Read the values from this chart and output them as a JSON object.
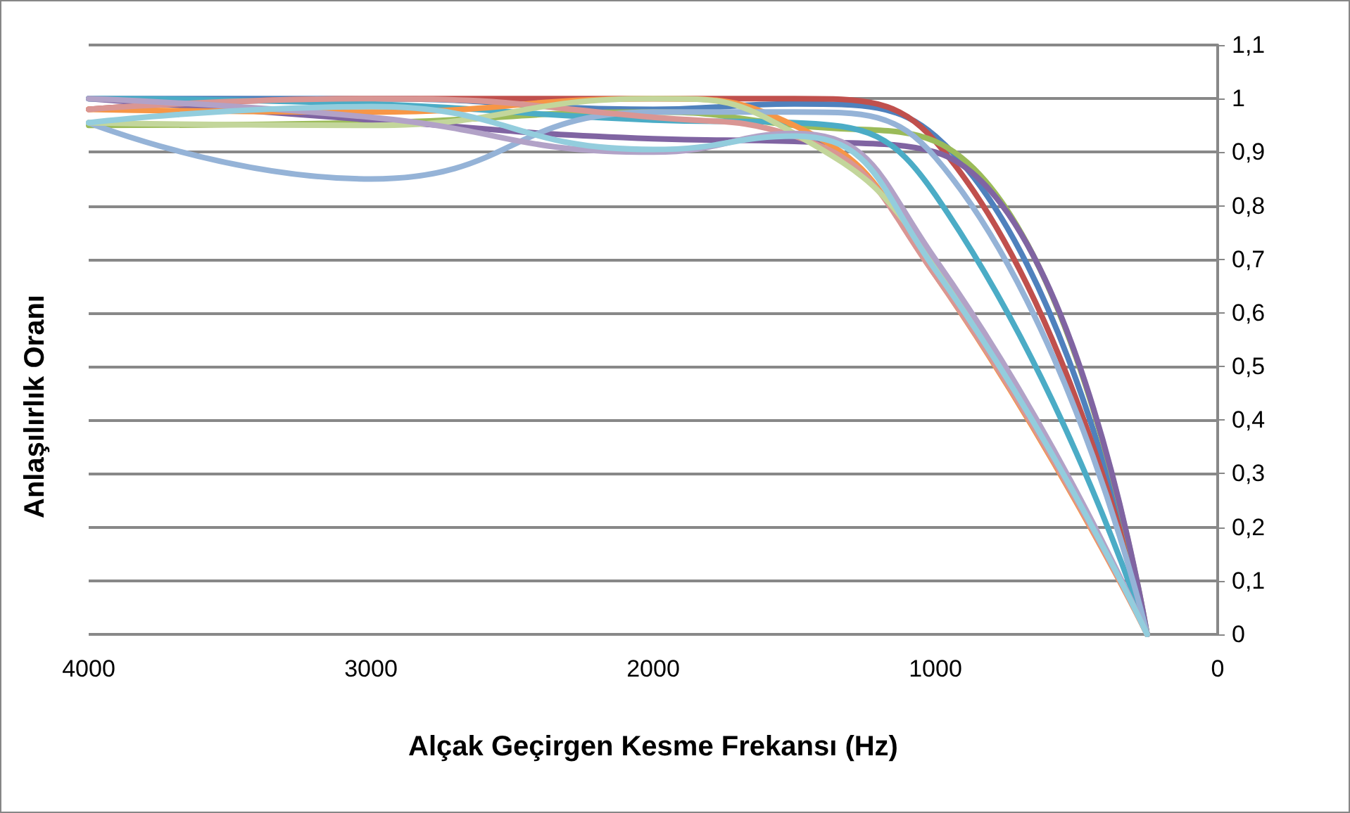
{
  "chart_data": {
    "type": "line",
    "xlabel": "Alçak Geçirgen Kesme Frekansı (Hz)",
    "ylabel": "Anlaşılırlık Oranı",
    "x": [
      4000,
      3000,
      2000,
      1500,
      1000,
      250
    ],
    "series": [
      {
        "color": "#4f81bd",
        "values": [
          1.0,
          1.0,
          0.98,
          0.99,
          0.93,
          0
        ]
      },
      {
        "color": "#c0504d",
        "values": [
          0.98,
          1.0,
          1.0,
          1.0,
          0.92,
          0
        ]
      },
      {
        "color": "#9bbb59",
        "values": [
          0.95,
          0.955,
          0.975,
          0.95,
          0.92,
          0
        ]
      },
      {
        "color": "#8064a2",
        "values": [
          1.0,
          0.96,
          0.925,
          0.92,
          0.9,
          0
        ]
      },
      {
        "color": "#4bacc6",
        "values": [
          1.0,
          0.99,
          0.96,
          0.955,
          0.82,
          0
        ]
      },
      {
        "color": "#f79646",
        "values": [
          0.98,
          0.975,
          1.0,
          0.95,
          0.67,
          0
        ]
      },
      {
        "color": "#95b3d7",
        "values": [
          0.955,
          0.85,
          0.975,
          0.975,
          0.89,
          0
        ]
      },
      {
        "color": "#d99694",
        "values": [
          0.98,
          1.0,
          0.965,
          0.93,
          0.67,
          0
        ]
      },
      {
        "color": "#c3d69b",
        "values": [
          0.955,
          0.95,
          1.0,
          0.935,
          0.69,
          0
        ]
      },
      {
        "color": "#b2a2c7",
        "values": [
          1.0,
          0.965,
          0.9,
          0.935,
          0.7,
          0
        ]
      },
      {
        "color": "#93cddd",
        "values": [
          0.955,
          0.985,
          0.905,
          0.93,
          0.68,
          0
        ]
      }
    ],
    "xlim": [
      4000,
      0
    ],
    "xticks": [
      4000,
      3000,
      2000,
      1000,
      0
    ],
    "ylim": [
      0,
      1.1
    ],
    "yticks": [
      0,
      {
        "value": 0.1,
        "label": "0,1"
      },
      {
        "value": 0.2,
        "label": "0,2"
      },
      {
        "value": 0.3,
        "label": "0,3"
      },
      {
        "value": 0.4,
        "label": "0,4"
      },
      {
        "value": 0.5,
        "label": "0,5"
      },
      {
        "value": 0.6,
        "label": "0,6"
      },
      {
        "value": 0.7,
        "label": "0,7"
      },
      {
        "value": 0.8,
        "label": "0,8"
      },
      {
        "value": 0.9,
        "label": "0,9"
      },
      1,
      {
        "value": 1.1,
        "label": "1,1"
      }
    ],
    "grid": "y",
    "marker": "none",
    "line_style": "solid"
  }
}
